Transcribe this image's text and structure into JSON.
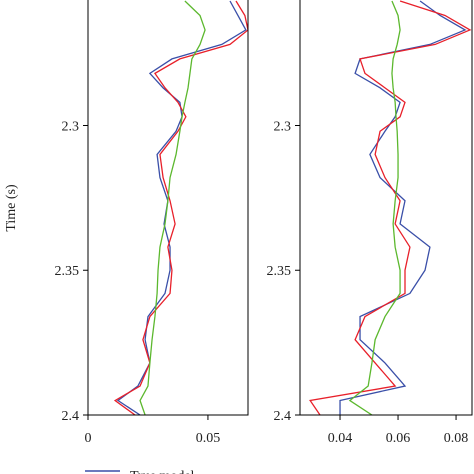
{
  "chart_data": [
    {
      "type": "line",
      "ylabel": "Time (s)",
      "y_inverted": true,
      "y": [
        2.257,
        2.262,
        2.267,
        2.272,
        2.277,
        2.282,
        2.287,
        2.292,
        2.297,
        2.302,
        2.31,
        2.318,
        2.326,
        2.334,
        2.342,
        2.35,
        2.358,
        2.366,
        2.374,
        2.382,
        2.39,
        2.395,
        2.4
      ],
      "xlim": [
        0,
        0.0667
      ],
      "xticks": [
        0,
        0.05
      ],
      "ylim": [
        2.257,
        2.4
      ],
      "yticks": [
        2.3,
        2.35,
        2.4
      ],
      "series": [
        {
          "name": "True model",
          "color": "#3a4fa8",
          "values": [
            0.0592,
            0.0625,
            0.0658,
            0.0558,
            0.035,
            0.0258,
            0.0313,
            0.0383,
            0.0392,
            0.0367,
            0.0288,
            0.03,
            0.0333,
            0.0317,
            0.0342,
            0.0342,
            0.0321,
            0.025,
            0.0238,
            0.0258,
            0.0208,
            0.0125,
            0.0217
          ]
        },
        {
          "color": "#e8202a",
          "values": [
            0.0617,
            0.0654,
            0.0667,
            0.0592,
            0.0383,
            0.0279,
            0.0321,
            0.0375,
            0.0408,
            0.0375,
            0.03,
            0.0313,
            0.0342,
            0.0363,
            0.0333,
            0.035,
            0.0342,
            0.0258,
            0.0229,
            0.0258,
            0.0217,
            0.0113,
            0.0196
          ]
        },
        {
          "color": "#5cb82e",
          "values": [
            0.0404,
            0.0467,
            0.0488,
            0.0467,
            0.0433,
            0.0425,
            0.0417,
            0.0404,
            0.0392,
            0.0383,
            0.0367,
            0.0342,
            0.0333,
            0.0321,
            0.03,
            0.0292,
            0.0288,
            0.0279,
            0.0267,
            0.0258,
            0.025,
            0.0217,
            0.0238
          ]
        }
      ]
    },
    {
      "type": "line",
      "y_inverted": true,
      "y": [
        2.257,
        2.262,
        2.267,
        2.272,
        2.277,
        2.282,
        2.287,
        2.292,
        2.297,
        2.302,
        2.31,
        2.318,
        2.326,
        2.334,
        2.342,
        2.35,
        2.358,
        2.366,
        2.374,
        2.382,
        2.39,
        2.395,
        2.4
      ],
      "xlim": [
        0.0262,
        0.0855
      ],
      "xticks": [
        0.04,
        0.06,
        0.08
      ],
      "ylim": [
        2.257,
        2.4
      ],
      "yticks": [
        2.3,
        2.35,
        2.4
      ],
      "series": [
        {
          "color": "#3a4fa8",
          "values": [
            0.0676,
            0.0745,
            0.0831,
            0.071,
            0.0469,
            0.0452,
            0.0538,
            0.0607,
            0.059,
            0.0555,
            0.0503,
            0.0538,
            0.0624,
            0.0607,
            0.071,
            0.0693,
            0.0641,
            0.0469,
            0.0469,
            0.0555,
            0.0624,
            0.04,
            0.04
          ]
        },
        {
          "color": "#e8202a",
          "values": [
            0.0607,
            0.0762,
            0.0848,
            0.0728,
            0.0469,
            0.0486,
            0.0555,
            0.0624,
            0.0607,
            0.0538,
            0.0521,
            0.0555,
            0.0607,
            0.059,
            0.0641,
            0.0624,
            0.0624,
            0.0486,
            0.0452,
            0.0521,
            0.059,
            0.0297,
            0.0331
          ]
        },
        {
          "color": "#5cb82e",
          "values": [
            0.0579,
            0.06,
            0.0607,
            0.0597,
            0.0583,
            0.0579,
            0.0583,
            0.059,
            0.0593,
            0.0597,
            0.06,
            0.06,
            0.059,
            0.0583,
            0.059,
            0.0607,
            0.0607,
            0.0555,
            0.0521,
            0.051,
            0.0497,
            0.0434,
            0.051
          ]
        }
      ]
    }
  ]
}
